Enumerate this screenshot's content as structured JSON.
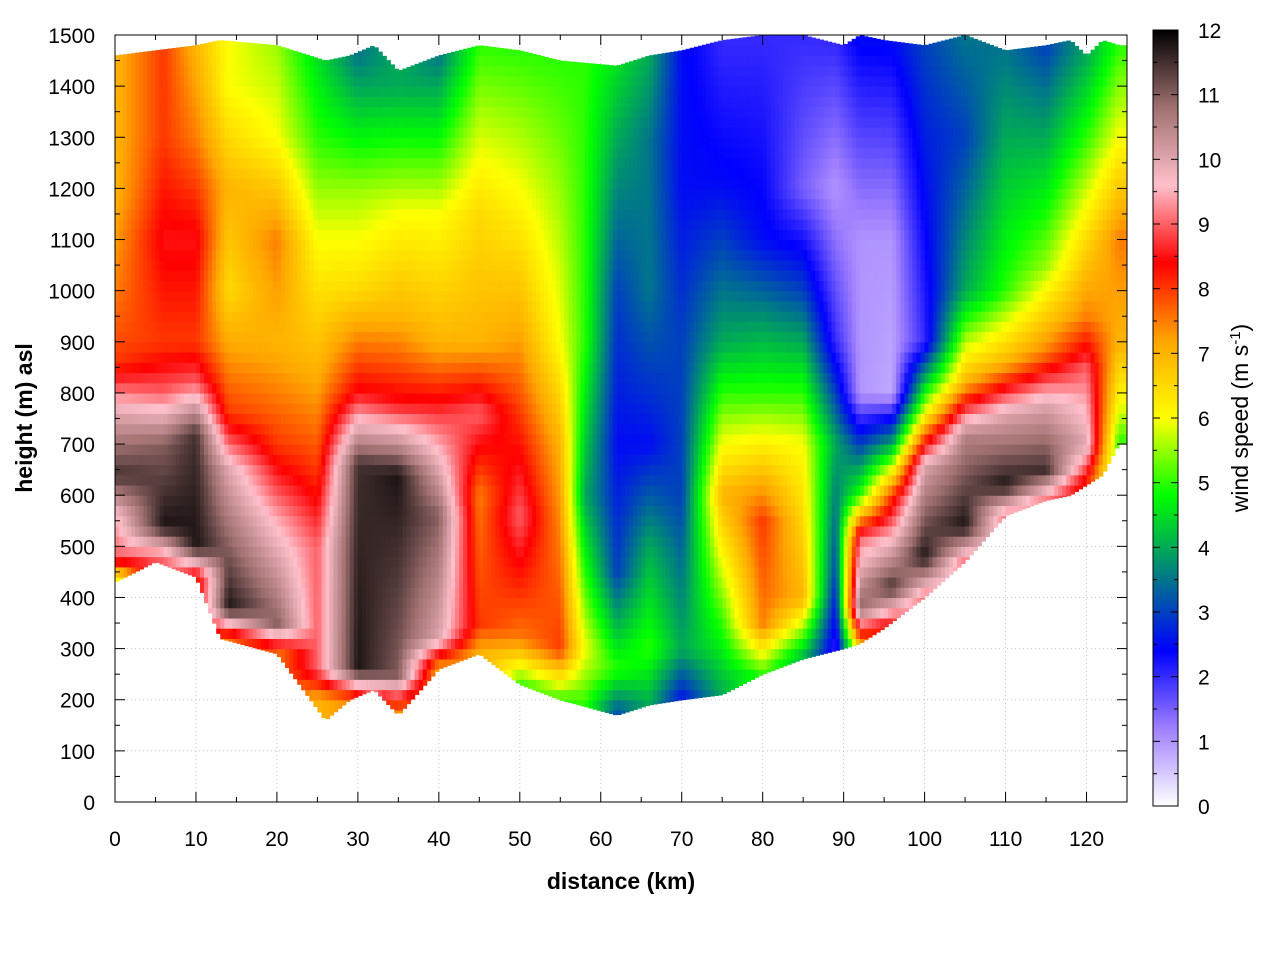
{
  "chart_data": {
    "type": "heatmap",
    "title": "",
    "xlabel": "distance (km)",
    "ylabel": "height (m) asl",
    "xlim": [
      0,
      125
    ],
    "ylim": [
      0,
      1500
    ],
    "x_ticks": [
      "0",
      "10",
      "20",
      "30",
      "40",
      "50",
      "60",
      "70",
      "80",
      "90",
      "100",
      "110",
      "120"
    ],
    "y_ticks": [
      "0",
      "100",
      "200",
      "300",
      "400",
      "500",
      "600",
      "700",
      "800",
      "900",
      "1000",
      "1100",
      "1200",
      "1300",
      "1400",
      "1500"
    ],
    "grid": true,
    "colorbar": {
      "label": "wind speed (m s",
      "label_superscript": "-1",
      "label_suffix": ")",
      "range": [
        0,
        12
      ],
      "ticks": [
        "0",
        "1",
        "2",
        "3",
        "4",
        "5",
        "6",
        "7",
        "8",
        "9",
        "10",
        "11",
        "12"
      ],
      "colors": [
        "#ffffff",
        "#9f7fff",
        "#0000ff",
        "#008080",
        "#00ff00",
        "#ffff00",
        "#ffa500",
        "#ff0000",
        "#ffc0cb",
        "#a07070",
        "#000000"
      ]
    },
    "terrain_km": [
      0,
      5,
      10,
      13,
      20,
      26,
      29,
      32,
      35,
      40,
      45,
      50,
      55,
      62,
      66,
      70,
      75,
      80,
      85,
      90,
      92,
      95,
      100,
      105,
      110,
      115,
      118,
      120,
      122,
      124
    ],
    "terrain_m": [
      430,
      470,
      440,
      320,
      290,
      160,
      200,
      220,
      170,
      260,
      290,
      230,
      200,
      170,
      190,
      200,
      210,
      250,
      280,
      300,
      310,
      340,
      400,
      470,
      560,
      590,
      600,
      620,
      640,
      700
    ],
    "top_m": [
      1460,
      1470,
      1480,
      1490,
      1480,
      1450,
      1460,
      1480,
      1430,
      1460,
      1480,
      1470,
      1450,
      1440,
      1460,
      1470,
      1490,
      1500,
      1500,
      1480,
      1500,
      1490,
      1480,
      1500,
      1470,
      1480,
      1490,
      1460,
      1490,
      1480
    ],
    "wind_profiles": [
      {
        "x": 0,
        "levels": [
          [
            440,
            6
          ],
          [
            480,
            9
          ],
          [
            560,
            9.5
          ],
          [
            640,
            11.5
          ],
          [
            760,
            10
          ],
          [
            860,
            8
          ],
          [
            1000,
            7.5
          ],
          [
            1200,
            7
          ],
          [
            1460,
            7
          ]
        ]
      },
      {
        "x": 6,
        "levels": [
          [
            480,
            9
          ],
          [
            540,
            11.8
          ],
          [
            700,
            11
          ],
          [
            800,
            9
          ],
          [
            900,
            8
          ],
          [
            1100,
            8.5
          ],
          [
            1300,
            8
          ],
          [
            1460,
            8
          ]
        ]
      },
      {
        "x": 10,
        "levels": [
          [
            440,
            8
          ],
          [
            500,
            11.8
          ],
          [
            720,
            11.5
          ],
          [
            820,
            9
          ],
          [
            900,
            8
          ],
          [
            1100,
            8.5
          ],
          [
            1300,
            7.5
          ],
          [
            1470,
            7
          ]
        ]
      },
      {
        "x": 14,
        "levels": [
          [
            320,
            7.5
          ],
          [
            380,
            11.8
          ],
          [
            650,
            10
          ],
          [
            760,
            8
          ],
          [
            1000,
            6.5
          ],
          [
            1200,
            7
          ],
          [
            1400,
            6
          ],
          [
            1480,
            6
          ]
        ]
      },
      {
        "x": 20,
        "levels": [
          [
            290,
            7.5
          ],
          [
            350,
            11
          ],
          [
            550,
            9.5
          ],
          [
            700,
            8
          ],
          [
            900,
            7
          ],
          [
            1100,
            7.5
          ],
          [
            1300,
            6
          ],
          [
            1490,
            5.5
          ]
        ]
      },
      {
        "x": 25,
        "levels": [
          [
            200,
            7
          ],
          [
            260,
            9
          ],
          [
            500,
            9
          ],
          [
            650,
            8
          ],
          [
            850,
            7
          ],
          [
            1100,
            6
          ],
          [
            1300,
            5
          ],
          [
            1460,
            4.5
          ]
        ]
      },
      {
        "x": 30,
        "levels": [
          [
            200,
            7.5
          ],
          [
            260,
            11.8
          ],
          [
            660,
            11.5
          ],
          [
            800,
            8.5
          ],
          [
            1000,
            6.5
          ],
          [
            1200,
            5.5
          ],
          [
            1460,
            3.5
          ]
        ]
      },
      {
        "x": 35,
        "levels": [
          [
            170,
            7
          ],
          [
            250,
            11
          ],
          [
            640,
            11.8
          ],
          [
            780,
            8.5
          ],
          [
            950,
            7
          ],
          [
            1150,
            6
          ],
          [
            1400,
            4
          ]
        ]
      },
      {
        "x": 40,
        "levels": [
          [
            260,
            7
          ],
          [
            320,
            10
          ],
          [
            560,
            11
          ],
          [
            740,
            9
          ],
          [
            900,
            7
          ],
          [
            1150,
            6
          ],
          [
            1460,
            3.5
          ]
        ]
      },
      {
        "x": 45,
        "levels": [
          [
            290,
            7
          ],
          [
            350,
            8
          ],
          [
            600,
            7.5
          ],
          [
            760,
            9
          ],
          [
            900,
            7
          ],
          [
            1150,
            6.5
          ],
          [
            1480,
            5
          ]
        ]
      },
      {
        "x": 50,
        "levels": [
          [
            230,
            5
          ],
          [
            320,
            7.5
          ],
          [
            560,
            9
          ],
          [
            760,
            8
          ],
          [
            950,
            7
          ],
          [
            1200,
            6
          ],
          [
            1470,
            5
          ]
        ]
      },
      {
        "x": 55,
        "levels": [
          [
            200,
            5
          ],
          [
            300,
            8
          ],
          [
            500,
            7.5
          ],
          [
            700,
            7
          ],
          [
            900,
            6
          ],
          [
            1200,
            5.5
          ],
          [
            1450,
            5
          ]
        ]
      },
      {
        "x": 58,
        "levels": [
          [
            190,
            5
          ],
          [
            300,
            6
          ],
          [
            600,
            4
          ],
          [
            900,
            5
          ],
          [
            1200,
            5
          ],
          [
            1440,
            5
          ]
        ]
      },
      {
        "x": 62,
        "levels": [
          [
            170,
            3
          ],
          [
            260,
            5
          ],
          [
            450,
            3
          ],
          [
            700,
            2.5
          ],
          [
            1000,
            3
          ],
          [
            1300,
            4
          ],
          [
            1440,
            4.5
          ]
        ]
      },
      {
        "x": 66,
        "levels": [
          [
            190,
            4
          ],
          [
            300,
            5
          ],
          [
            500,
            4
          ],
          [
            700,
            2.5
          ],
          [
            1000,
            3.5
          ],
          [
            1300,
            3.5
          ],
          [
            1460,
            4
          ]
        ]
      },
      {
        "x": 70,
        "levels": [
          [
            200,
            2.5
          ],
          [
            300,
            4
          ],
          [
            600,
            3
          ],
          [
            900,
            3
          ],
          [
            1200,
            2.5
          ],
          [
            1470,
            2.5
          ]
        ]
      },
      {
        "x": 75,
        "levels": [
          [
            210,
            4
          ],
          [
            350,
            5
          ],
          [
            600,
            7
          ],
          [
            900,
            4
          ],
          [
            1200,
            2.5
          ],
          [
            1490,
            2
          ]
        ]
      },
      {
        "x": 80,
        "levels": [
          [
            250,
            5
          ],
          [
            350,
            7.5
          ],
          [
            550,
            8
          ],
          [
            800,
            5
          ],
          [
            1100,
            2.5
          ],
          [
            1500,
            2
          ]
        ]
      },
      {
        "x": 85,
        "levels": [
          [
            280,
            4
          ],
          [
            400,
            7
          ],
          [
            700,
            6
          ],
          [
            1000,
            3
          ],
          [
            1200,
            1.5
          ],
          [
            1500,
            2
          ]
        ]
      },
      {
        "x": 89,
        "levels": [
          [
            300,
            2
          ],
          [
            450,
            3
          ],
          [
            700,
            4
          ],
          [
            900,
            2
          ],
          [
            1200,
            1
          ],
          [
            1480,
            2
          ]
        ]
      },
      {
        "x": 92,
        "levels": [
          [
            310,
            7
          ],
          [
            380,
            11
          ],
          [
            520,
            9
          ],
          [
            600,
            5
          ],
          [
            800,
            1
          ],
          [
            1100,
            1
          ],
          [
            1500,
            2.5
          ]
        ]
      },
      {
        "x": 96,
        "levels": [
          [
            340,
            8
          ],
          [
            420,
            11.5
          ],
          [
            600,
            8
          ],
          [
            700,
            4
          ],
          [
            800,
            0.8
          ],
          [
            1100,
            1
          ],
          [
            1490,
            2.5
          ]
        ]
      },
      {
        "x": 100,
        "levels": [
          [
            400,
            9
          ],
          [
            480,
            11.8
          ],
          [
            660,
            10
          ],
          [
            760,
            6
          ],
          [
            900,
            2
          ],
          [
            1200,
            2.5
          ],
          [
            1480,
            3
          ]
        ]
      },
      {
        "x": 105,
        "levels": [
          [
            470,
            9
          ],
          [
            540,
            11.8
          ],
          [
            720,
            10.5
          ],
          [
            820,
            7
          ],
          [
            1000,
            4
          ],
          [
            1300,
            3
          ],
          [
            1500,
            3.5
          ]
        ]
      },
      {
        "x": 110,
        "levels": [
          [
            560,
            9
          ],
          [
            620,
            11.8
          ],
          [
            760,
            10
          ],
          [
            860,
            7
          ],
          [
            1000,
            5
          ],
          [
            1300,
            4
          ],
          [
            1470,
            3.5
          ]
        ]
      },
      {
        "x": 115,
        "levels": [
          [
            590,
            9
          ],
          [
            650,
            11.5
          ],
          [
            780,
            10
          ],
          [
            880,
            7.5
          ],
          [
            1050,
            5.5
          ],
          [
            1300,
            4
          ],
          [
            1480,
            3
          ]
        ]
      },
      {
        "x": 120,
        "levels": [
          [
            620,
            8
          ],
          [
            700,
            10
          ],
          [
            850,
            9
          ],
          [
            950,
            7.5
          ],
          [
            1100,
            6.5
          ],
          [
            1300,
            5
          ],
          [
            1460,
            4
          ]
        ]
      },
      {
        "x": 124,
        "levels": [
          [
            700,
            5
          ],
          [
            780,
            6
          ],
          [
            900,
            7
          ],
          [
            1100,
            7.5
          ],
          [
            1300,
            6
          ],
          [
            1480,
            5
          ]
        ]
      }
    ]
  }
}
